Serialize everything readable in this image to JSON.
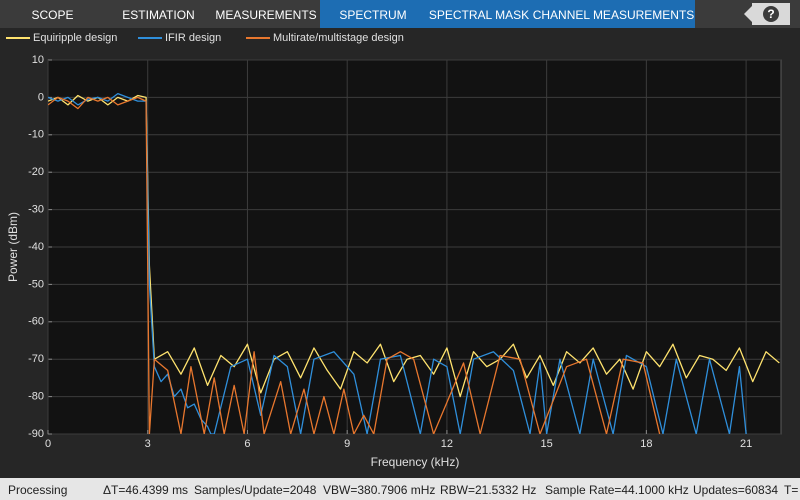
{
  "toolbar": {
    "tabs": [
      {
        "label": "SCOPE",
        "color": "#3b3b3b"
      },
      {
        "label": "ESTIMATION",
        "color": "#3b3b3b"
      },
      {
        "label": "MEASUREMENTS",
        "color": "#3b3b3b"
      },
      {
        "label": "SPECTRUM",
        "color": "#1d6db3"
      },
      {
        "label": "SPECTRAL MASK",
        "color": "#1d6db3"
      },
      {
        "label": "CHANNEL MEASUREMENTS",
        "color": "#1d6db3"
      }
    ],
    "help_button": "?"
  },
  "chart_data": {
    "type": "line",
    "xlabel": "Frequency (kHz)",
    "ylabel": "Power (dBm)",
    "xlim": [
      0,
      22.05
    ],
    "ylim": [
      -90,
      10
    ],
    "xticks": [
      0,
      3,
      6,
      9,
      12,
      15,
      18,
      21
    ],
    "yticks": [
      10,
      0,
      -10,
      -20,
      -30,
      -40,
      -50,
      -60,
      -70,
      -80,
      -90
    ],
    "grid": true,
    "series": [
      {
        "name": "Equiripple design",
        "color": "#ffe36e",
        "x": [
          0,
          0.3,
          0.6,
          0.9,
          1.2,
          1.5,
          1.8,
          2.1,
          2.4,
          2.7,
          2.95,
          3.05,
          3.2,
          3.6,
          4.0,
          4.4,
          4.8,
          5.2,
          5.6,
          6.0,
          6.4,
          6.8,
          7.2,
          7.6,
          8.0,
          8.4,
          8.8,
          9.2,
          9.6,
          10.0,
          10.4,
          10.8,
          11.2,
          11.6,
          12.0,
          12.4,
          12.8,
          13.2,
          13.6,
          14.0,
          14.4,
          14.8,
          15.2,
          15.6,
          16.0,
          16.4,
          16.8,
          17.2,
          17.6,
          18.0,
          18.4,
          18.8,
          19.2,
          19.6,
          20.0,
          20.4,
          20.8,
          21.2,
          21.6,
          22.0
        ],
        "values": [
          -1,
          0,
          -2,
          0.5,
          -1,
          0,
          -2,
          0,
          -1,
          0.5,
          0,
          -45,
          -70,
          -68,
          -74,
          -67,
          -77,
          -69,
          -72,
          -66,
          -79,
          -70,
          -68,
          -75,
          -67,
          -73,
          -78,
          -68,
          -71,
          -66,
          -76,
          -70,
          -69,
          -74,
          -67,
          -80,
          -68,
          -72,
          -70,
          -66,
          -75,
          -69,
          -77,
          -68,
          -71,
          -67,
          -74,
          -70,
          -78,
          -68,
          -72,
          -66,
          -75,
          -69,
          -70,
          -73,
          -67,
          -76,
          -68,
          -71
        ]
      },
      {
        "name": "IFIR design",
        "color": "#2f8fdb",
        "x": [
          0,
          0.3,
          0.6,
          0.9,
          1.2,
          1.5,
          1.8,
          2.1,
          2.4,
          2.7,
          2.95,
          3.05,
          3.2,
          3.4,
          3.6,
          3.8,
          4.0,
          4.2,
          4.4,
          4.6,
          4.8,
          4.9,
          5.0,
          5.5,
          6.0,
          6.4,
          6.8,
          7.2,
          7.6,
          8.0,
          8.6,
          9.2,
          9.6,
          10.0,
          10.6,
          11.2,
          11.6,
          12.0,
          12.4,
          12.8,
          13.4,
          14.0,
          14.5,
          14.8,
          15.0,
          15.4,
          16.0,
          16.4,
          17.0,
          17.4,
          18.0,
          18.5,
          18.9,
          19.5,
          19.9,
          20.5,
          20.8,
          21.0
        ],
        "values": [
          0,
          -1,
          0,
          -2,
          -0.5,
          0,
          -1,
          1,
          0,
          -1,
          -1,
          -50,
          -72,
          -76,
          -74,
          -80,
          -78,
          -83,
          -82,
          -86,
          -88,
          -90,
          -90,
          -72,
          -70,
          -85,
          -69,
          -72,
          -90,
          -70,
          -68,
          -74,
          -90,
          -70,
          -69,
          -90,
          -70,
          -72,
          -90,
          -70,
          -68,
          -73,
          -90,
          -71,
          -90,
          -70,
          -90,
          -70,
          -90,
          -69,
          -72,
          -90,
          -70,
          -90,
          -70,
          -90,
          -72,
          -90
        ]
      },
      {
        "name": "Multirate/multistage design",
        "color": "#e8772e",
        "x": [
          0,
          0.3,
          0.6,
          0.9,
          1.2,
          1.5,
          1.8,
          2.1,
          2.4,
          2.7,
          2.95,
          3.05,
          3.2,
          3.6,
          4.0,
          4.3,
          4.7,
          5.0,
          5.3,
          5.6,
          5.9,
          6.2,
          6.5,
          7.0,
          7.3,
          7.7,
          8.0,
          8.3,
          8.6,
          8.9,
          9.2,
          9.5,
          9.8,
          10.2,
          10.6,
          11.0,
          11.6,
          12.5,
          13.0,
          13.6,
          14.2,
          14.8,
          15.6,
          16.2,
          16.8,
          17.3,
          17.9,
          18.4
        ],
        "values": [
          -2,
          0,
          -1,
          -3,
          0,
          -1,
          0,
          -2,
          -1,
          0,
          -1,
          -90,
          -70,
          -73,
          -90,
          -72,
          -90,
          -75,
          -90,
          -77,
          -90,
          -68,
          -90,
          -76,
          -90,
          -78,
          -90,
          -80,
          -90,
          -78,
          -90,
          -85,
          -90,
          -70,
          -68,
          -70,
          -90,
          -71,
          -90,
          -69,
          -70,
          -90,
          -72,
          -70,
          -90,
          -70,
          -71,
          -90
        ]
      }
    ]
  },
  "status_bar": {
    "items": [
      "Processing",
      "ΔT=46.4399 ms",
      "Samples/Update=2048",
      "VBW=380.7906 mHz",
      "RBW=21.5332 Hz",
      "Sample Rate=44.1000 kHz",
      "Updates=60834",
      "T="
    ]
  }
}
